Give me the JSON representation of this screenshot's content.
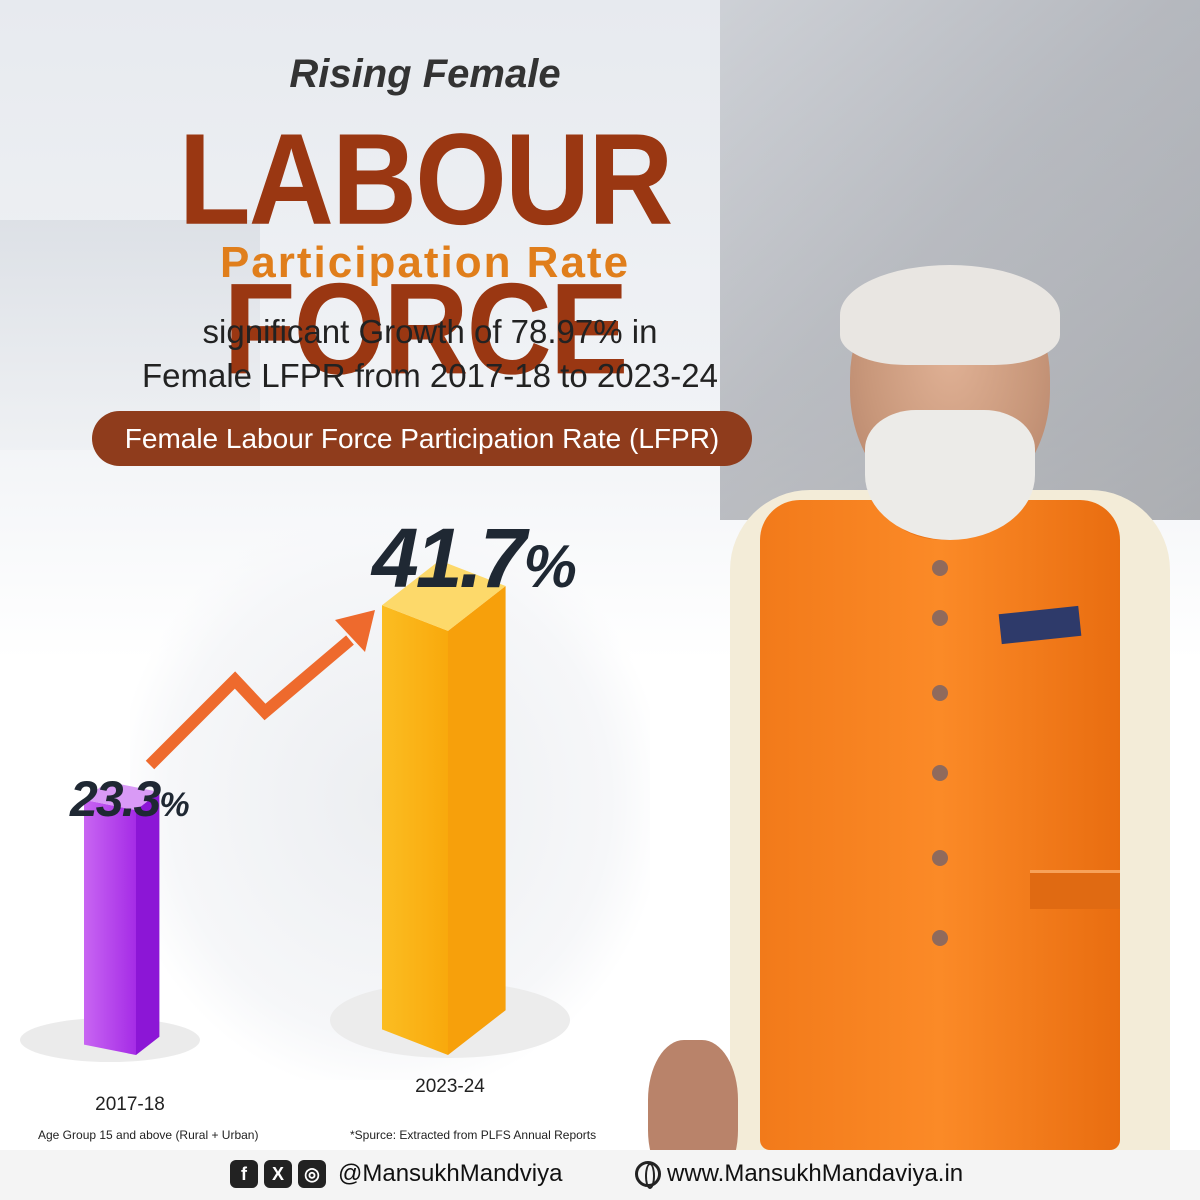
{
  "header": {
    "kicker": "Rising Female",
    "title": "LABOUR FORCE",
    "subtitle": "Participation Rate",
    "growth_line1": "significant Growth of 78.97% in",
    "growth_line2": "Female LFPR from 2017-18 to 2023-24",
    "pill": "Female Labour Force Participation Rate (LFPR)"
  },
  "chart_data": {
    "type": "bar",
    "categories": [
      "2017-18",
      "2023-24"
    ],
    "values": [
      23.3,
      41.7
    ],
    "value_labels": [
      "23.3",
      "41.7"
    ],
    "unit": "%",
    "title": "Female Labour Force Participation Rate (LFPR)",
    "colors": [
      "#a72be8",
      "#fbb214"
    ],
    "trend_arrow_color": "#ee6a2d",
    "ylim": [
      0,
      45
    ]
  },
  "notes": {
    "age_group": "Age Group 15 and above (Rural + Urban)",
    "source": "*Spurce: Extracted from PLFS Annual Reports"
  },
  "footer": {
    "icons": [
      "facebook-icon",
      "x-icon",
      "instagram-icon"
    ],
    "icon_glyphs": [
      "f",
      "X",
      "◎"
    ],
    "handle": "@MansukhMandviya",
    "website": "www.MansukhMandaviya.in"
  }
}
